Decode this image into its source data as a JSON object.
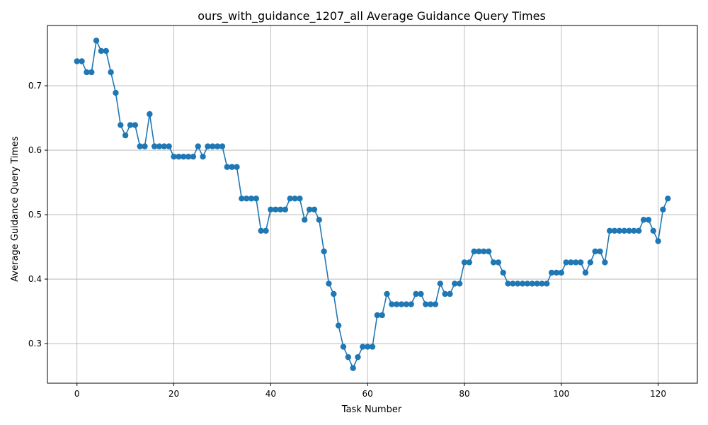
{
  "chart_data": {
    "type": "line",
    "title": "ours_with_guidance_1207_all Average Guidance Query Times",
    "xlabel": "Task Number",
    "ylabel": "Average Guidance Query Times",
    "xlim": [
      -6.1,
      128.1
    ],
    "ylim": [
      0.2385,
      0.7935
    ],
    "xticks": [
      0,
      20,
      40,
      60,
      80,
      100,
      120
    ],
    "yticks": [
      0.3,
      0.4,
      0.5,
      0.6,
      0.7
    ],
    "ytick_labels": [
      "0.3",
      "0.4",
      "0.5",
      "0.6",
      "0.7"
    ],
    "grid": true,
    "marker": "circle",
    "color": "#1f77b4",
    "series": [
      {
        "values": [
          0.738,
          0.738,
          0.721,
          0.721,
          0.77,
          0.754,
          0.754,
          0.721,
          0.689,
          0.639,
          0.623,
          0.639,
          0.639,
          0.606,
          0.606,
          0.656,
          0.606,
          0.606,
          0.606,
          0.606,
          0.59,
          0.59,
          0.59,
          0.59,
          0.59,
          0.606,
          0.59,
          0.606,
          0.606,
          0.606,
          0.606,
          0.574,
          0.574,
          0.574,
          0.525,
          0.525,
          0.525,
          0.525,
          0.475,
          0.475,
          0.508,
          0.508,
          0.508,
          0.508,
          0.525,
          0.525,
          0.525,
          0.492,
          0.508,
          0.508,
          0.492,
          0.443,
          0.393,
          0.377,
          0.328,
          0.295,
          0.279,
          0.262,
          0.279,
          0.295,
          0.295,
          0.295,
          0.344,
          0.344,
          0.377,
          0.361,
          0.361,
          0.361,
          0.361,
          0.361,
          0.377,
          0.377,
          0.361,
          0.361,
          0.361,
          0.393,
          0.377,
          0.377,
          0.393,
          0.393,
          0.426,
          0.426,
          0.443,
          0.443,
          0.443,
          0.443,
          0.426,
          0.426,
          0.41,
          0.393,
          0.393,
          0.393,
          0.393,
          0.393,
          0.393,
          0.393,
          0.393,
          0.393,
          0.41,
          0.41,
          0.41,
          0.426,
          0.426,
          0.426,
          0.426,
          0.41,
          0.426,
          0.443,
          0.443,
          0.426,
          0.475,
          0.475,
          0.475,
          0.475,
          0.475,
          0.475,
          0.475,
          0.492,
          0.492,
          0.475,
          0.459,
          0.508,
          0.525
        ]
      }
    ]
  }
}
